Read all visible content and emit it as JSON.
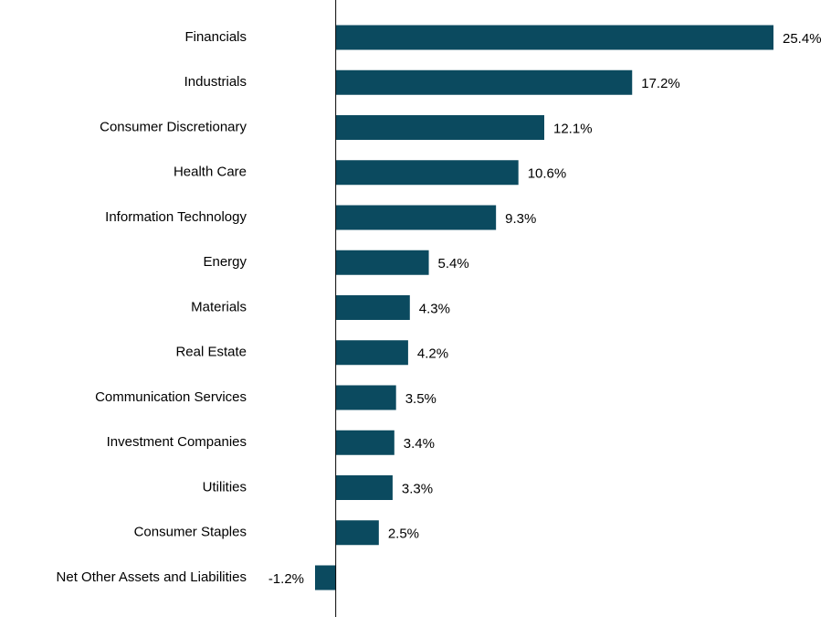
{
  "chart_data": {
    "type": "hbar",
    "categories": [
      "Financials",
      "Industrials",
      "Consumer Discretionary",
      "Health Care",
      "Information Technology",
      "Energy",
      "Materials",
      "Real Estate",
      "Communication Services",
      "Investment Companies",
      "Utilities",
      "Consumer Staples",
      "Net Other Assets and Liabilities"
    ],
    "values": [
      25.4,
      17.2,
      12.1,
      10.6,
      9.3,
      5.4,
      4.3,
      4.2,
      3.5,
      3.4,
      3.3,
      2.5,
      -1.2
    ],
    "value_labels": [
      "25.4%",
      "17.2%",
      "12.1%",
      "10.6%",
      "9.3%",
      "5.4%",
      "4.3%",
      "4.2%",
      "3.5%",
      "3.4%",
      "3.3%",
      "2.5%",
      "-1.2%"
    ],
    "color": "#0b4a5f"
  }
}
